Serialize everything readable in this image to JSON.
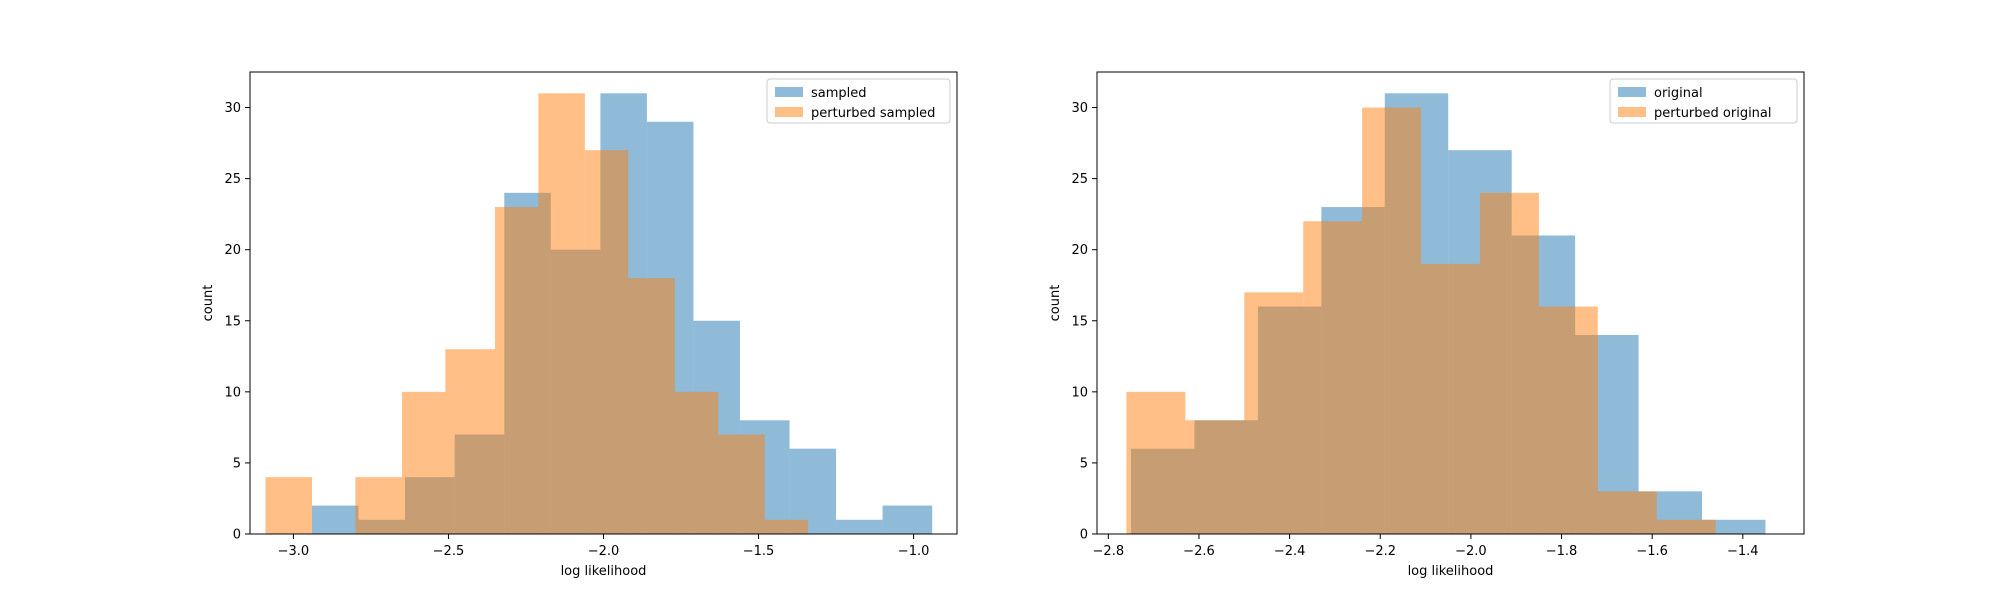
{
  "chart_data": [
    {
      "type": "histogram",
      "xlabel": "log likelihood",
      "ylabel": "count",
      "xlim": [
        -3.14,
        -0.86
      ],
      "ylim": [
        0,
        32.5
      ],
      "xticks": [
        -3.0,
        -2.5,
        -2.0,
        -1.5,
        -1.0
      ],
      "xtick_labels": [
        "−3.0",
        "−2.5",
        "−2.0",
        "−1.5",
        "−1.0"
      ],
      "yticks": [
        0,
        5,
        10,
        15,
        20,
        25,
        30
      ],
      "ytick_labels": [
        "0",
        "5",
        "10",
        "15",
        "20",
        "25",
        "30"
      ],
      "legend_position": "top-right",
      "series": [
        {
          "name": "sampled",
          "color": "#1f77b4",
          "alpha": 0.5,
          "bin_edges": [
            -2.94,
            -2.79,
            -2.64,
            -2.48,
            -2.32,
            -2.17,
            -2.01,
            -1.86,
            -1.71,
            -1.56,
            -1.4,
            -1.25,
            -1.1,
            -0.94
          ],
          "counts": [
            2,
            1,
            4,
            7,
            24,
            20,
            31,
            29,
            15,
            8,
            6,
            1,
            2
          ]
        },
        {
          "name": "perturbed sampled",
          "color": "#ff7f0e",
          "alpha": 0.5,
          "bin_edges": [
            -3.09,
            -2.94,
            -2.8,
            -2.65,
            -2.51,
            -2.35,
            -2.21,
            -2.06,
            -1.92,
            -1.77,
            -1.63,
            -1.48,
            -1.34
          ],
          "counts": [
            4,
            0,
            4,
            10,
            13,
            23,
            31,
            27,
            18,
            10,
            7,
            1
          ]
        }
      ]
    },
    {
      "type": "histogram",
      "xlabel": "log likelihood",
      "ylabel": "count",
      "xlim": [
        -2.825,
        -1.265
      ],
      "ylim": [
        0,
        32.5
      ],
      "xticks": [
        -2.8,
        -2.6,
        -2.4,
        -2.2,
        -2.0,
        -1.8,
        -1.6,
        -1.4
      ],
      "xtick_labels": [
        "−2.8",
        "−2.6",
        "−2.4",
        "−2.2",
        "−2.0",
        "−1.8",
        "−1.6",
        "−1.4"
      ],
      "yticks": [
        0,
        5,
        10,
        15,
        20,
        25,
        30
      ],
      "ytick_labels": [
        "0",
        "5",
        "10",
        "15",
        "20",
        "25",
        "30"
      ],
      "legend_position": "top-right",
      "series": [
        {
          "name": "original",
          "color": "#1f77b4",
          "alpha": 0.5,
          "bin_edges": [
            -2.75,
            -2.61,
            -2.47,
            -2.33,
            -2.19,
            -2.05,
            -1.91,
            -1.77,
            -1.63,
            -1.49,
            -1.35
          ],
          "counts": [
            6,
            8,
            16,
            23,
            31,
            27,
            21,
            14,
            3,
            1
          ]
        },
        {
          "name": "perturbed original",
          "color": "#ff7f0e",
          "alpha": 0.5,
          "bin_edges": [
            -2.76,
            -2.63,
            -2.5,
            -2.37,
            -2.24,
            -2.11,
            -1.98,
            -1.85,
            -1.72,
            -1.59,
            -1.46
          ],
          "counts": [
            10,
            8,
            17,
            22,
            30,
            19,
            24,
            16,
            3,
            1
          ]
        }
      ]
    }
  ]
}
